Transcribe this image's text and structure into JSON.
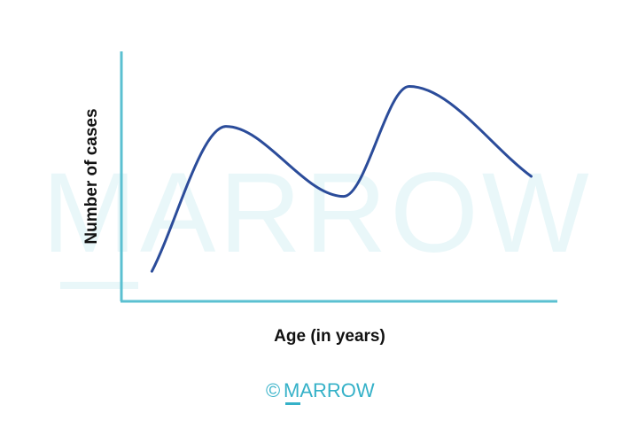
{
  "watermark": {
    "text": "MARROW",
    "color": "#e9f7f9"
  },
  "credit": {
    "copyright_symbol": "©",
    "brand": "MARROW",
    "color": "#35b1c8"
  },
  "chart_data": {
    "type": "line",
    "title": "",
    "xlabel": "Age (in years)",
    "ylabel": "Number of cases",
    "xlim": [
      0,
      100
    ],
    "ylim": [
      0,
      100
    ],
    "x_ticks": [],
    "y_ticks": [],
    "grid": false,
    "legend": "none",
    "axis_color": "#5bc0d1",
    "series": [
      {
        "color": "#2b4c9a",
        "smooth": true,
        "x": [
          7,
          24,
          51,
          66,
          94
        ],
        "y": [
          12,
          70,
          42,
          86,
          50
        ]
      }
    ]
  }
}
